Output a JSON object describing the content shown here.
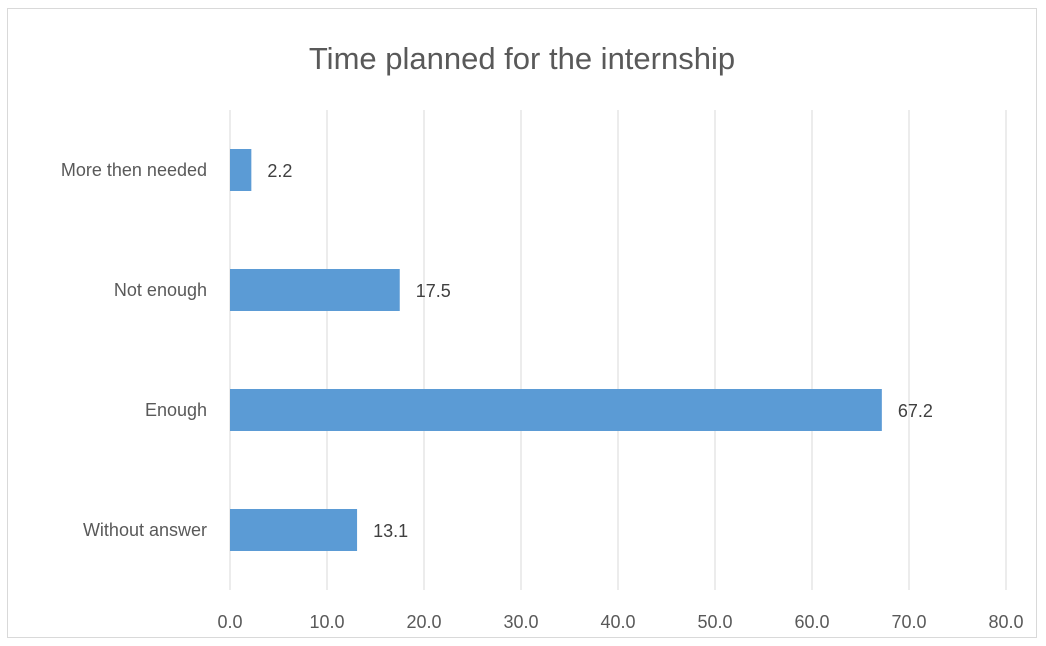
{
  "chart_data": {
    "type": "bar",
    "orientation": "horizontal",
    "title": "Time planned for the internship",
    "categories": [
      "More then needed",
      "Not enough",
      "Enough",
      "Without answer"
    ],
    "values": [
      2.2,
      17.5,
      67.2,
      13.1
    ],
    "value_labels": [
      "2.2",
      "17.5",
      "67.2",
      "13.1"
    ],
    "xlim": [
      0,
      80
    ],
    "xticks": [
      "0.0",
      "10.0",
      "20.0",
      "30.0",
      "40.0",
      "50.0",
      "60.0",
      "70.0",
      "80.0"
    ],
    "grid": true,
    "legend": "none",
    "bar_color": "#5b9bd5"
  }
}
